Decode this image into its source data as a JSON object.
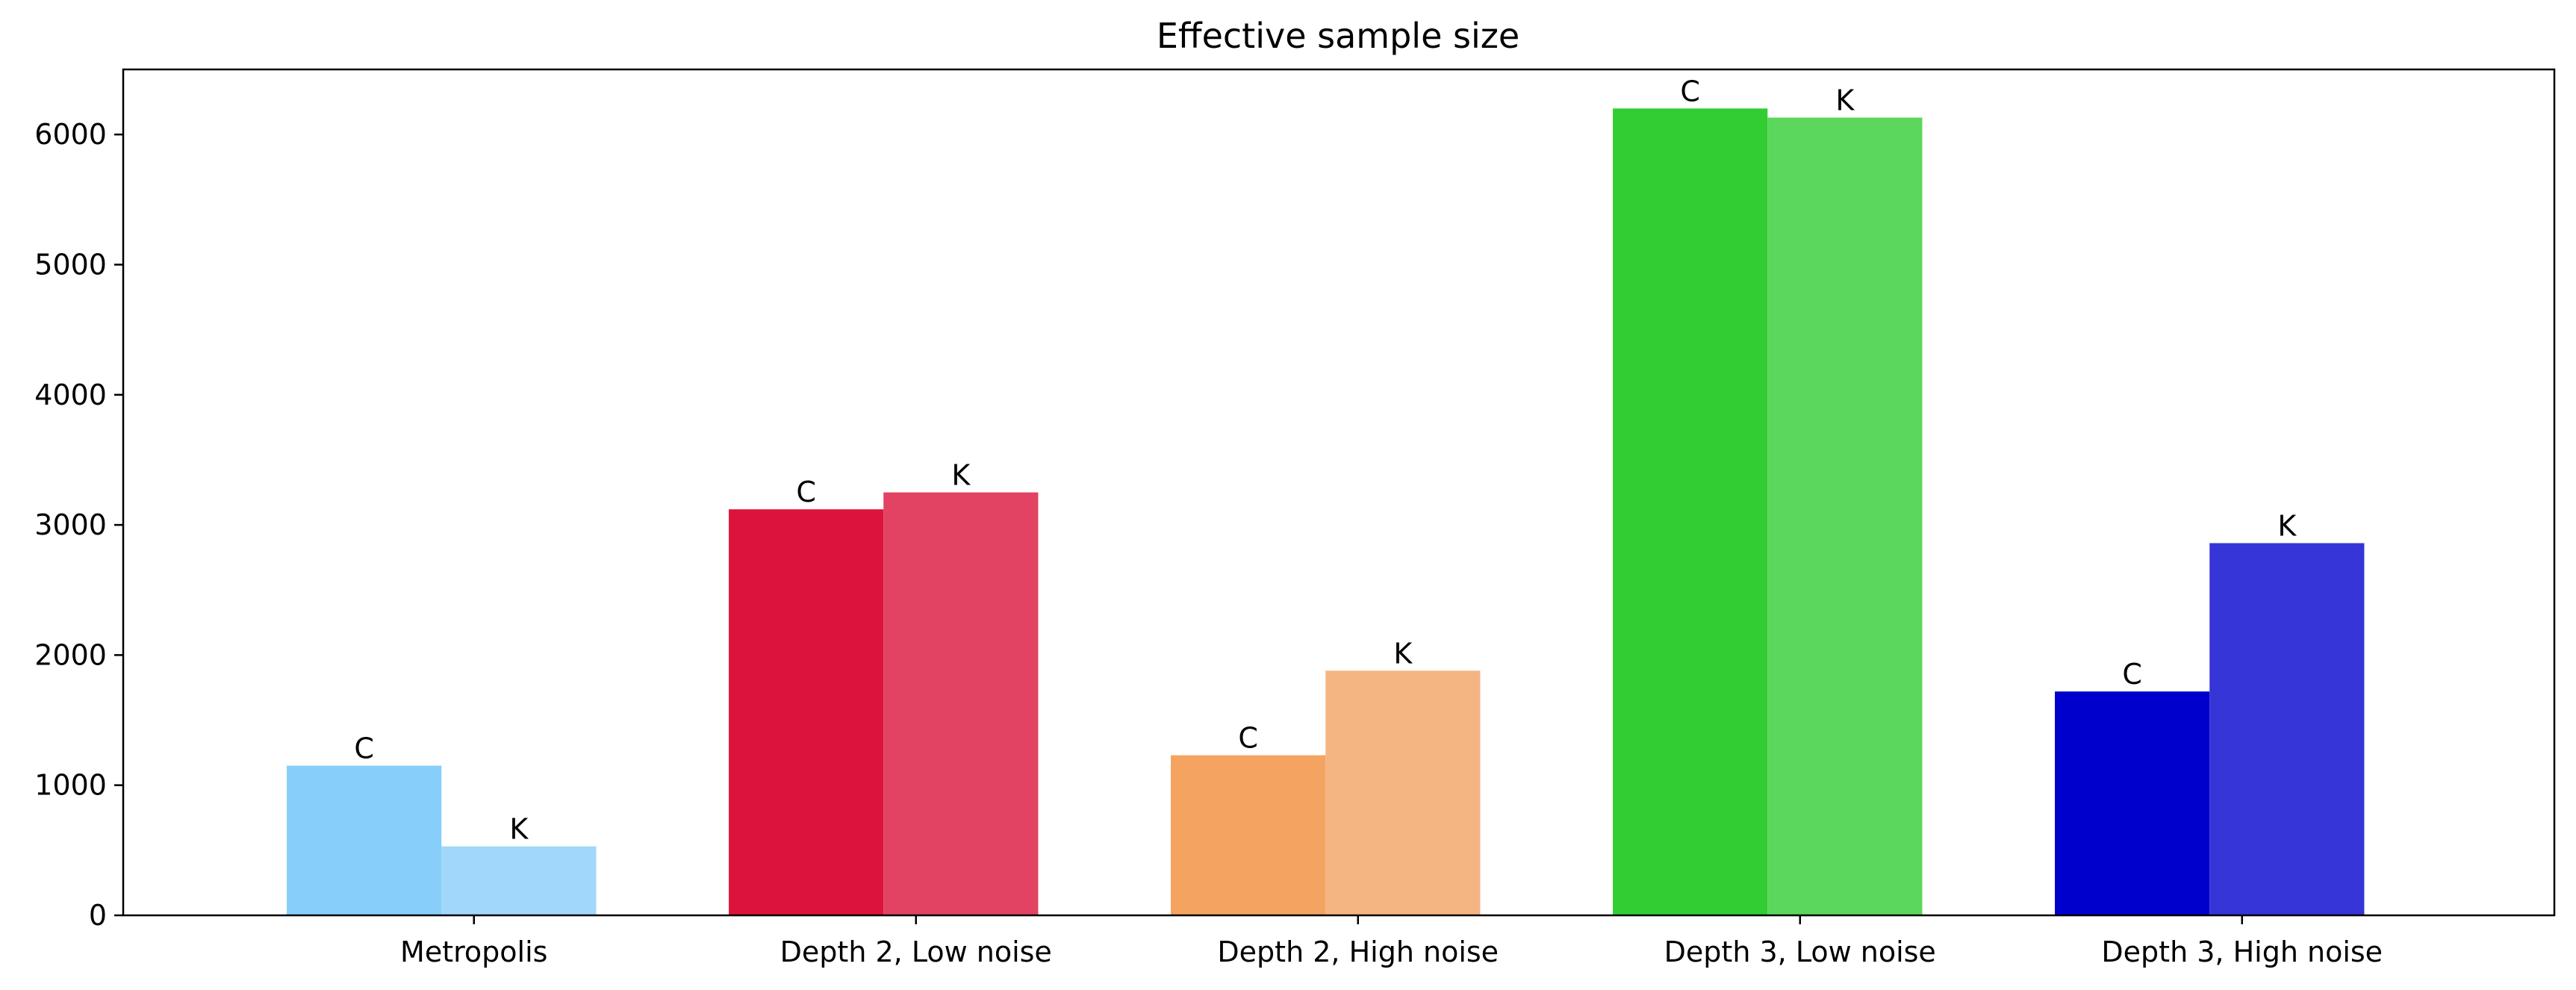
{
  "chart_data": {
    "type": "bar",
    "title": "Effective sample size",
    "xlabel": "",
    "ylabel": "",
    "ylim": [
      0,
      6500
    ],
    "yticks": [
      0,
      1000,
      2000,
      3000,
      4000,
      5000,
      6000
    ],
    "grid": false,
    "categories": [
      "Metropolis",
      "Depth 2, Low noise",
      "Depth 2, High noise",
      "Depth 3, Low noise",
      "Depth 3, High noise"
    ],
    "bar_labels": [
      "C",
      "K"
    ],
    "groups": [
      {
        "category": "Metropolis",
        "values": [
          1150,
          530
        ],
        "colors": [
          "#87cefa",
          "#a0d7fa"
        ]
      },
      {
        "category": "Depth 2, Low noise",
        "values": [
          3120,
          3250
        ],
        "colors": [
          "#dc143c",
          "#e24362"
        ]
      },
      {
        "category": "Depth 2, High noise",
        "values": [
          1230,
          1880
        ],
        "colors": [
          "#f4a460",
          "#f5b583"
        ]
      },
      {
        "category": "Depth 3, Low noise",
        "values": [
          6200,
          6130
        ],
        "colors": [
          "#32cd32",
          "#5bd75b"
        ]
      },
      {
        "category": "Depth 3, High noise",
        "values": [
          1720,
          2860
        ],
        "colors": [
          "#0000cd",
          "#3535d8"
        ]
      }
    ]
  }
}
